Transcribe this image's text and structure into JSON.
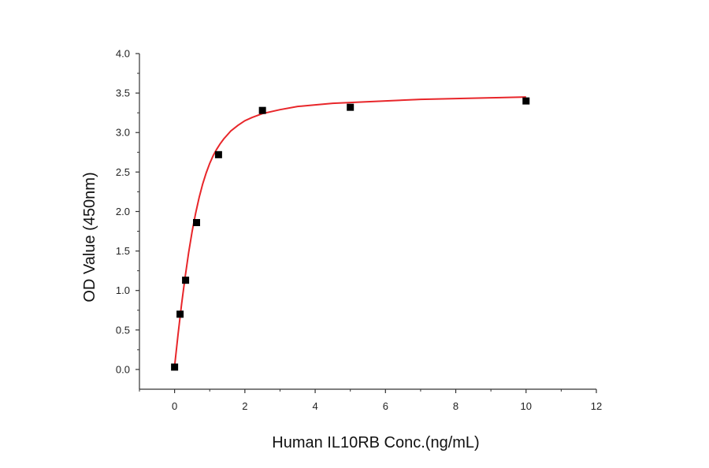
{
  "chart_data": {
    "type": "scatter",
    "title": "",
    "xlabel": "Human IL10RB Conc.(ng/mL)",
    "ylabel": "OD Value (450nm)",
    "xlim": [
      -1,
      12
    ],
    "ylim": [
      -0.25,
      4.0
    ],
    "x_ticks": [
      0,
      2,
      4,
      6,
      8,
      10,
      12
    ],
    "x_tick_labels": [
      "0",
      "2",
      "4",
      "6",
      "8",
      "10",
      "12"
    ],
    "y_ticks": [
      0.0,
      0.5,
      1.0,
      1.5,
      2.0,
      2.5,
      3.0,
      3.5,
      4.0
    ],
    "y_tick_labels": [
      "0.0",
      "0.5",
      "1.0",
      "1.5",
      "2.0",
      "2.5",
      "3.0",
      "3.5",
      "4.0"
    ],
    "grid": false,
    "legend": "none",
    "series": [
      {
        "marker": "square",
        "color": "#000000",
        "x": [
          0,
          0.156,
          0.313,
          0.625,
          1.25,
          2.5,
          5,
          10
        ],
        "y": [
          0.03,
          0.7,
          1.13,
          1.86,
          2.72,
          3.28,
          3.32,
          3.4
        ]
      }
    ],
    "fit_curve": {
      "color": "#e8262a",
      "x": [
        0,
        0.1,
        0.2,
        0.3,
        0.4,
        0.5,
        0.6,
        0.7,
        0.8,
        0.9,
        1.0,
        1.1,
        1.2,
        1.3,
        1.4,
        1.5,
        1.6,
        1.8,
        2.0,
        2.2,
        2.5,
        3.0,
        3.5,
        4.0,
        4.5,
        5.0,
        6.0,
        7.0,
        8.0,
        9.0,
        10.0
      ],
      "y": [
        0.04,
        0.45,
        0.83,
        1.17,
        1.48,
        1.75,
        1.98,
        2.18,
        2.35,
        2.49,
        2.61,
        2.71,
        2.79,
        2.86,
        2.92,
        2.97,
        3.02,
        3.09,
        3.15,
        3.19,
        3.24,
        3.29,
        3.33,
        3.35,
        3.37,
        3.38,
        3.4,
        3.42,
        3.43,
        3.44,
        3.45
      ]
    }
  }
}
